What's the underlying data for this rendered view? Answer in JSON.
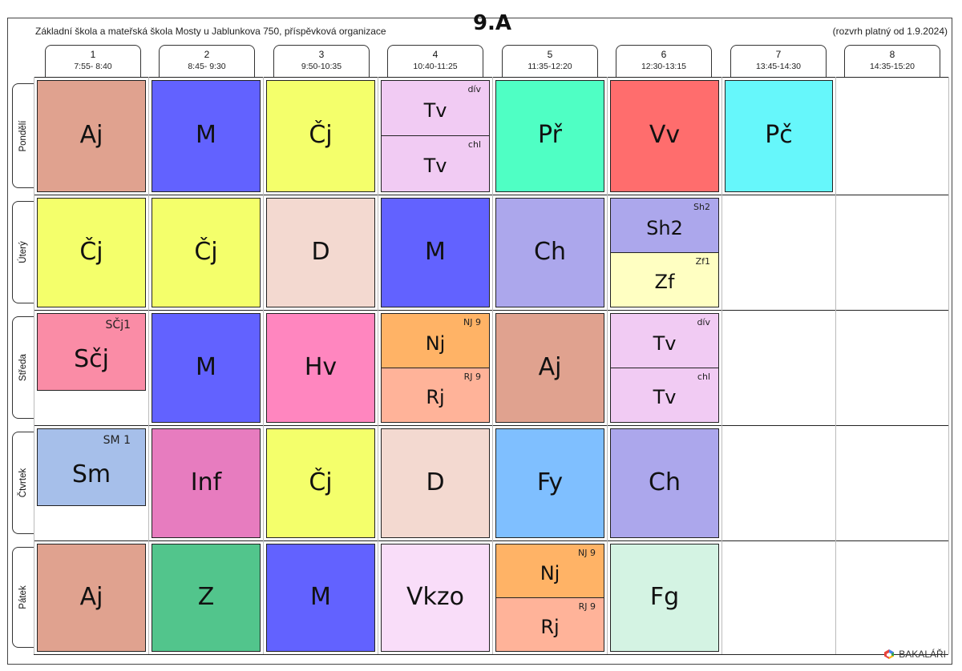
{
  "header": {
    "school": "Základní škola a mateřská škola Mosty u Jablunkova 750, příspěvková organizace",
    "class_name": "9.A",
    "validity": "(rozvrh platný od 1.9.2024)"
  },
  "periods": [
    {
      "num": "1",
      "time": "7:55- 8:40"
    },
    {
      "num": "2",
      "time": "8:45- 9:30"
    },
    {
      "num": "3",
      "time": "9:50-10:35"
    },
    {
      "num": "4",
      "time": "10:40-11:25"
    },
    {
      "num": "5",
      "time": "11:35-12:20"
    },
    {
      "num": "6",
      "time": "12:30-13:15"
    },
    {
      "num": "7",
      "time": "13:45-14:30"
    },
    {
      "num": "8",
      "time": "14:35-15:20"
    }
  ],
  "days": [
    "Pondělí",
    "Úterý",
    "Středa",
    "Čtvrtek",
    "Pátek"
  ],
  "cells": [
    {
      "name": "aj",
      "day": 0,
      "period": 0,
      "subject": "Aj",
      "color": "#e0a28f"
    },
    {
      "name": "m",
      "day": 0,
      "period": 1,
      "subject": "M",
      "color": "#6262ff"
    },
    {
      "name": "cj",
      "day": 0,
      "period": 2,
      "subject": "Čj",
      "color": "#f4ff6b"
    },
    {
      "name": "tv-div",
      "day": 0,
      "period": 3,
      "part": "top",
      "subject": "Tv",
      "group": "dív",
      "color": "#f1cbf3"
    },
    {
      "name": "tv-chl",
      "day": 0,
      "period": 3,
      "part": "bottom",
      "subject": "Tv",
      "group": "chl",
      "color": "#f1cbf3"
    },
    {
      "name": "pr",
      "day": 0,
      "period": 4,
      "subject": "Př",
      "color": "#4fffc4"
    },
    {
      "name": "vv",
      "day": 0,
      "period": 5,
      "subject": "Vv",
      "color": "#ff6d6d"
    },
    {
      "name": "pc",
      "day": 0,
      "period": 6,
      "subject": "Pč",
      "color": "#66f7fb"
    },
    {
      "name": "cj",
      "day": 1,
      "period": 0,
      "subject": "Čj",
      "color": "#f4ff6b"
    },
    {
      "name": "cj",
      "day": 1,
      "period": 1,
      "subject": "Čj",
      "color": "#f4ff6b"
    },
    {
      "name": "d",
      "day": 1,
      "period": 2,
      "subject": "D",
      "color": "#f3d9d0"
    },
    {
      "name": "m",
      "day": 1,
      "period": 3,
      "subject": "M",
      "color": "#6262ff"
    },
    {
      "name": "ch",
      "day": 1,
      "period": 4,
      "subject": "Ch",
      "color": "#aca7ec"
    },
    {
      "name": "sh2",
      "day": 1,
      "period": 5,
      "part": "top",
      "subject": "Sh2",
      "group": "Sh2",
      "color": "#aca7ec"
    },
    {
      "name": "zf",
      "day": 1,
      "period": 5,
      "part": "bottom",
      "subject": "Zf",
      "group": "Zf1",
      "color": "#ffffc2"
    },
    {
      "name": "scj",
      "day": 2,
      "period": 0,
      "part": "tall",
      "subject": "Sčj",
      "group": "SČj1",
      "color": "#fa8ca6"
    },
    {
      "name": "m",
      "day": 2,
      "period": 1,
      "subject": "M",
      "color": "#6262ff"
    },
    {
      "name": "hv",
      "day": 2,
      "period": 2,
      "subject": "Hv",
      "color": "#ff86bf"
    },
    {
      "name": "nj",
      "day": 2,
      "period": 3,
      "part": "top",
      "subject": "Nj",
      "group": "NJ 9",
      "color": "#ffb366"
    },
    {
      "name": "rj",
      "day": 2,
      "period": 3,
      "part": "bottom",
      "subject": "Rj",
      "group": "RJ 9",
      "color": "#ffb399"
    },
    {
      "name": "aj",
      "day": 2,
      "period": 4,
      "subject": "Aj",
      "color": "#e0a28f"
    },
    {
      "name": "tv-div",
      "day": 2,
      "period": 5,
      "part": "top",
      "subject": "Tv",
      "group": "dív",
      "color": "#f1cbf3"
    },
    {
      "name": "tv-chl",
      "day": 2,
      "period": 5,
      "part": "bottom",
      "subject": "Tv",
      "group": "chl",
      "color": "#f1cbf3"
    },
    {
      "name": "sm",
      "day": 3,
      "period": 0,
      "part": "tall",
      "subject": "Sm",
      "group": "SM 1",
      "color": "#a6bfea"
    },
    {
      "name": "inf",
      "day": 3,
      "period": 1,
      "subject": "Inf",
      "color": "#e77cbf"
    },
    {
      "name": "cj",
      "day": 3,
      "period": 2,
      "subject": "Čj",
      "color": "#f4ff6b"
    },
    {
      "name": "d",
      "day": 3,
      "period": 3,
      "subject": "D",
      "color": "#f3d9d0"
    },
    {
      "name": "fy",
      "day": 3,
      "period": 4,
      "subject": "Fy",
      "color": "#7fbfff"
    },
    {
      "name": "ch",
      "day": 3,
      "period": 5,
      "subject": "Ch",
      "color": "#aca7ec"
    },
    {
      "name": "aj",
      "day": 4,
      "period": 0,
      "subject": "Aj",
      "color": "#e0a28f"
    },
    {
      "name": "z",
      "day": 4,
      "period": 1,
      "subject": "Z",
      "color": "#52c58c"
    },
    {
      "name": "m",
      "day": 4,
      "period": 2,
      "subject": "M",
      "color": "#6262ff"
    },
    {
      "name": "vkzo",
      "day": 4,
      "period": 3,
      "subject": "Vkzo",
      "color": "#f9ddf9"
    },
    {
      "name": "nj",
      "day": 4,
      "period": 4,
      "part": "top",
      "subject": "Nj",
      "group": "NJ 9",
      "color": "#ffb366"
    },
    {
      "name": "rj",
      "day": 4,
      "period": 4,
      "part": "bottom",
      "subject": "Rj",
      "group": "RJ 9",
      "color": "#ffb399"
    },
    {
      "name": "fg",
      "day": 4,
      "period": 5,
      "subject": "Fg",
      "color": "#d4f3e3"
    }
  ],
  "brand": {
    "label": "BAKALÁŘI"
  }
}
